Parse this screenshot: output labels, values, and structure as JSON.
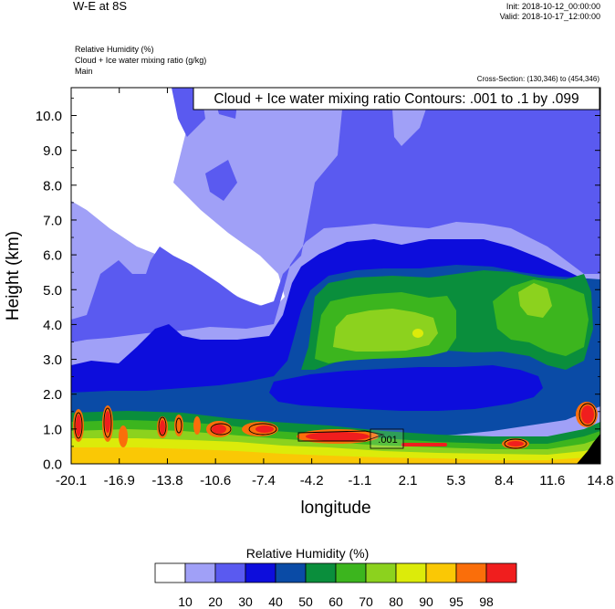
{
  "header": {
    "title": "W-E at 8S",
    "init": "Init: 2018-10-12_00:00:00",
    "valid": "Valid: 2018-10-17_12:00:00",
    "field1": "Relative Humidity   (%)",
    "field2": "Cloud + Ice water mixing ratio   (g/kg)",
    "field3": "Main",
    "cross_section": "Cross-Section: (130,346) to (454,346)"
  },
  "chart_data": {
    "type": "heatmap",
    "title": "W-E at 8S",
    "xlabel": "longitude",
    "ylabel": "Height (km)",
    "xlim": [
      -20.1,
      14.8
    ],
    "ylim": [
      0.0,
      10.8
    ],
    "x_ticks": [
      "-20.1",
      "-16.9",
      "-13.8",
      "-10.6",
      "-7.4",
      "-4.2",
      "-1.1",
      "2.1",
      "5.3",
      "8.4",
      "11.6",
      "14.8"
    ],
    "y_ticks": [
      "0.0",
      "1.0",
      "2.0",
      "3.0",
      "4.0",
      "5.0",
      "6.0",
      "7.0",
      "8.0",
      "9.0",
      "10.0"
    ],
    "fill_field": "Relative Humidity (%)",
    "contour_field": "Cloud + Ice water mixing ratio (g/kg)",
    "contour_info": "Cloud + Ice water mixing ratio Contours: .001 to .1 by .099",
    "contour_label": ".001",
    "colorbar": {
      "label": "Relative Humidity  (%)",
      "levels": [
        "10",
        "20",
        "30",
        "40",
        "50",
        "60",
        "70",
        "80",
        "90",
        "95",
        "98"
      ],
      "colors": [
        "#ffffff",
        "#a0a0f7",
        "#5a5af0",
        "#0d0ddc",
        "#0a4ba6",
        "#0a8e3c",
        "#3cb51e",
        "#8cd21e",
        "#dceb0a",
        "#fac805",
        "#fa6e0a",
        "#f01e1e"
      ]
    }
  }
}
